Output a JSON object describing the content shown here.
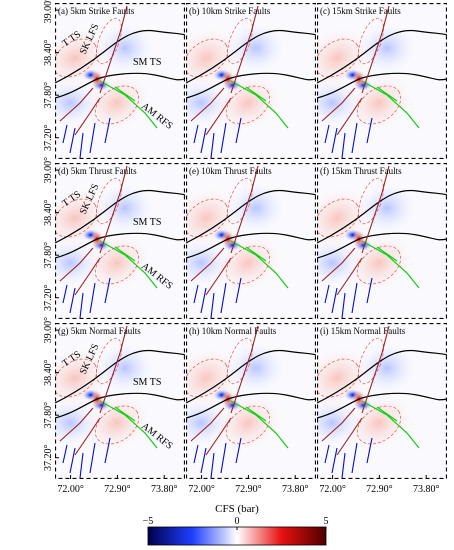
{
  "panels": [
    {
      "title": "(a) 5km Strike Faults"
    },
    {
      "title": "(b) 10km Strike Faults"
    },
    {
      "title": "(c) 15km Strike Faults"
    },
    {
      "title": "(d) 5km Thrust Faults"
    },
    {
      "title": "(e) 10km Thrust Faults"
    },
    {
      "title": "(f) 15km Thrust Faults"
    },
    {
      "title": "(g) 5km Normal Faults"
    },
    {
      "title": "(h) 10km Normal Faults"
    },
    {
      "title": "(i) 15km Normal Faults"
    }
  ],
  "axes": {
    "xlim": [
      71.7,
      74.2
    ],
    "ylim": [
      36.9,
      39.1
    ],
    "xticks": [
      {
        "value": 72.0,
        "label": "72.00°"
      },
      {
        "value": 72.9,
        "label": "72.90°"
      },
      {
        "value": 73.8,
        "label": "73.80°"
      }
    ],
    "yticks": [
      {
        "value": 39.0,
        "label": "39.00°"
      },
      {
        "value": 38.4,
        "label": "38.40°"
      },
      {
        "value": 37.8,
        "label": "37.80°"
      },
      {
        "value": 37.2,
        "label": "37.20°"
      }
    ]
  },
  "fault_labels": [
    "T TS",
    "SK LFS",
    "SM TS",
    "AM RFS"
  ],
  "colorbar": {
    "label": "CFS (bar)",
    "range": [
      -5,
      5
    ],
    "colors": [
      "#00004d",
      "#1f3fff",
      "#ffffff",
      "#e81010",
      "#4d0000"
    ],
    "ticks": [
      {
        "value": -5,
        "label": "−5"
      },
      {
        "value": 0,
        "label": "0"
      },
      {
        "value": 5,
        "label": "5"
      }
    ]
  }
}
